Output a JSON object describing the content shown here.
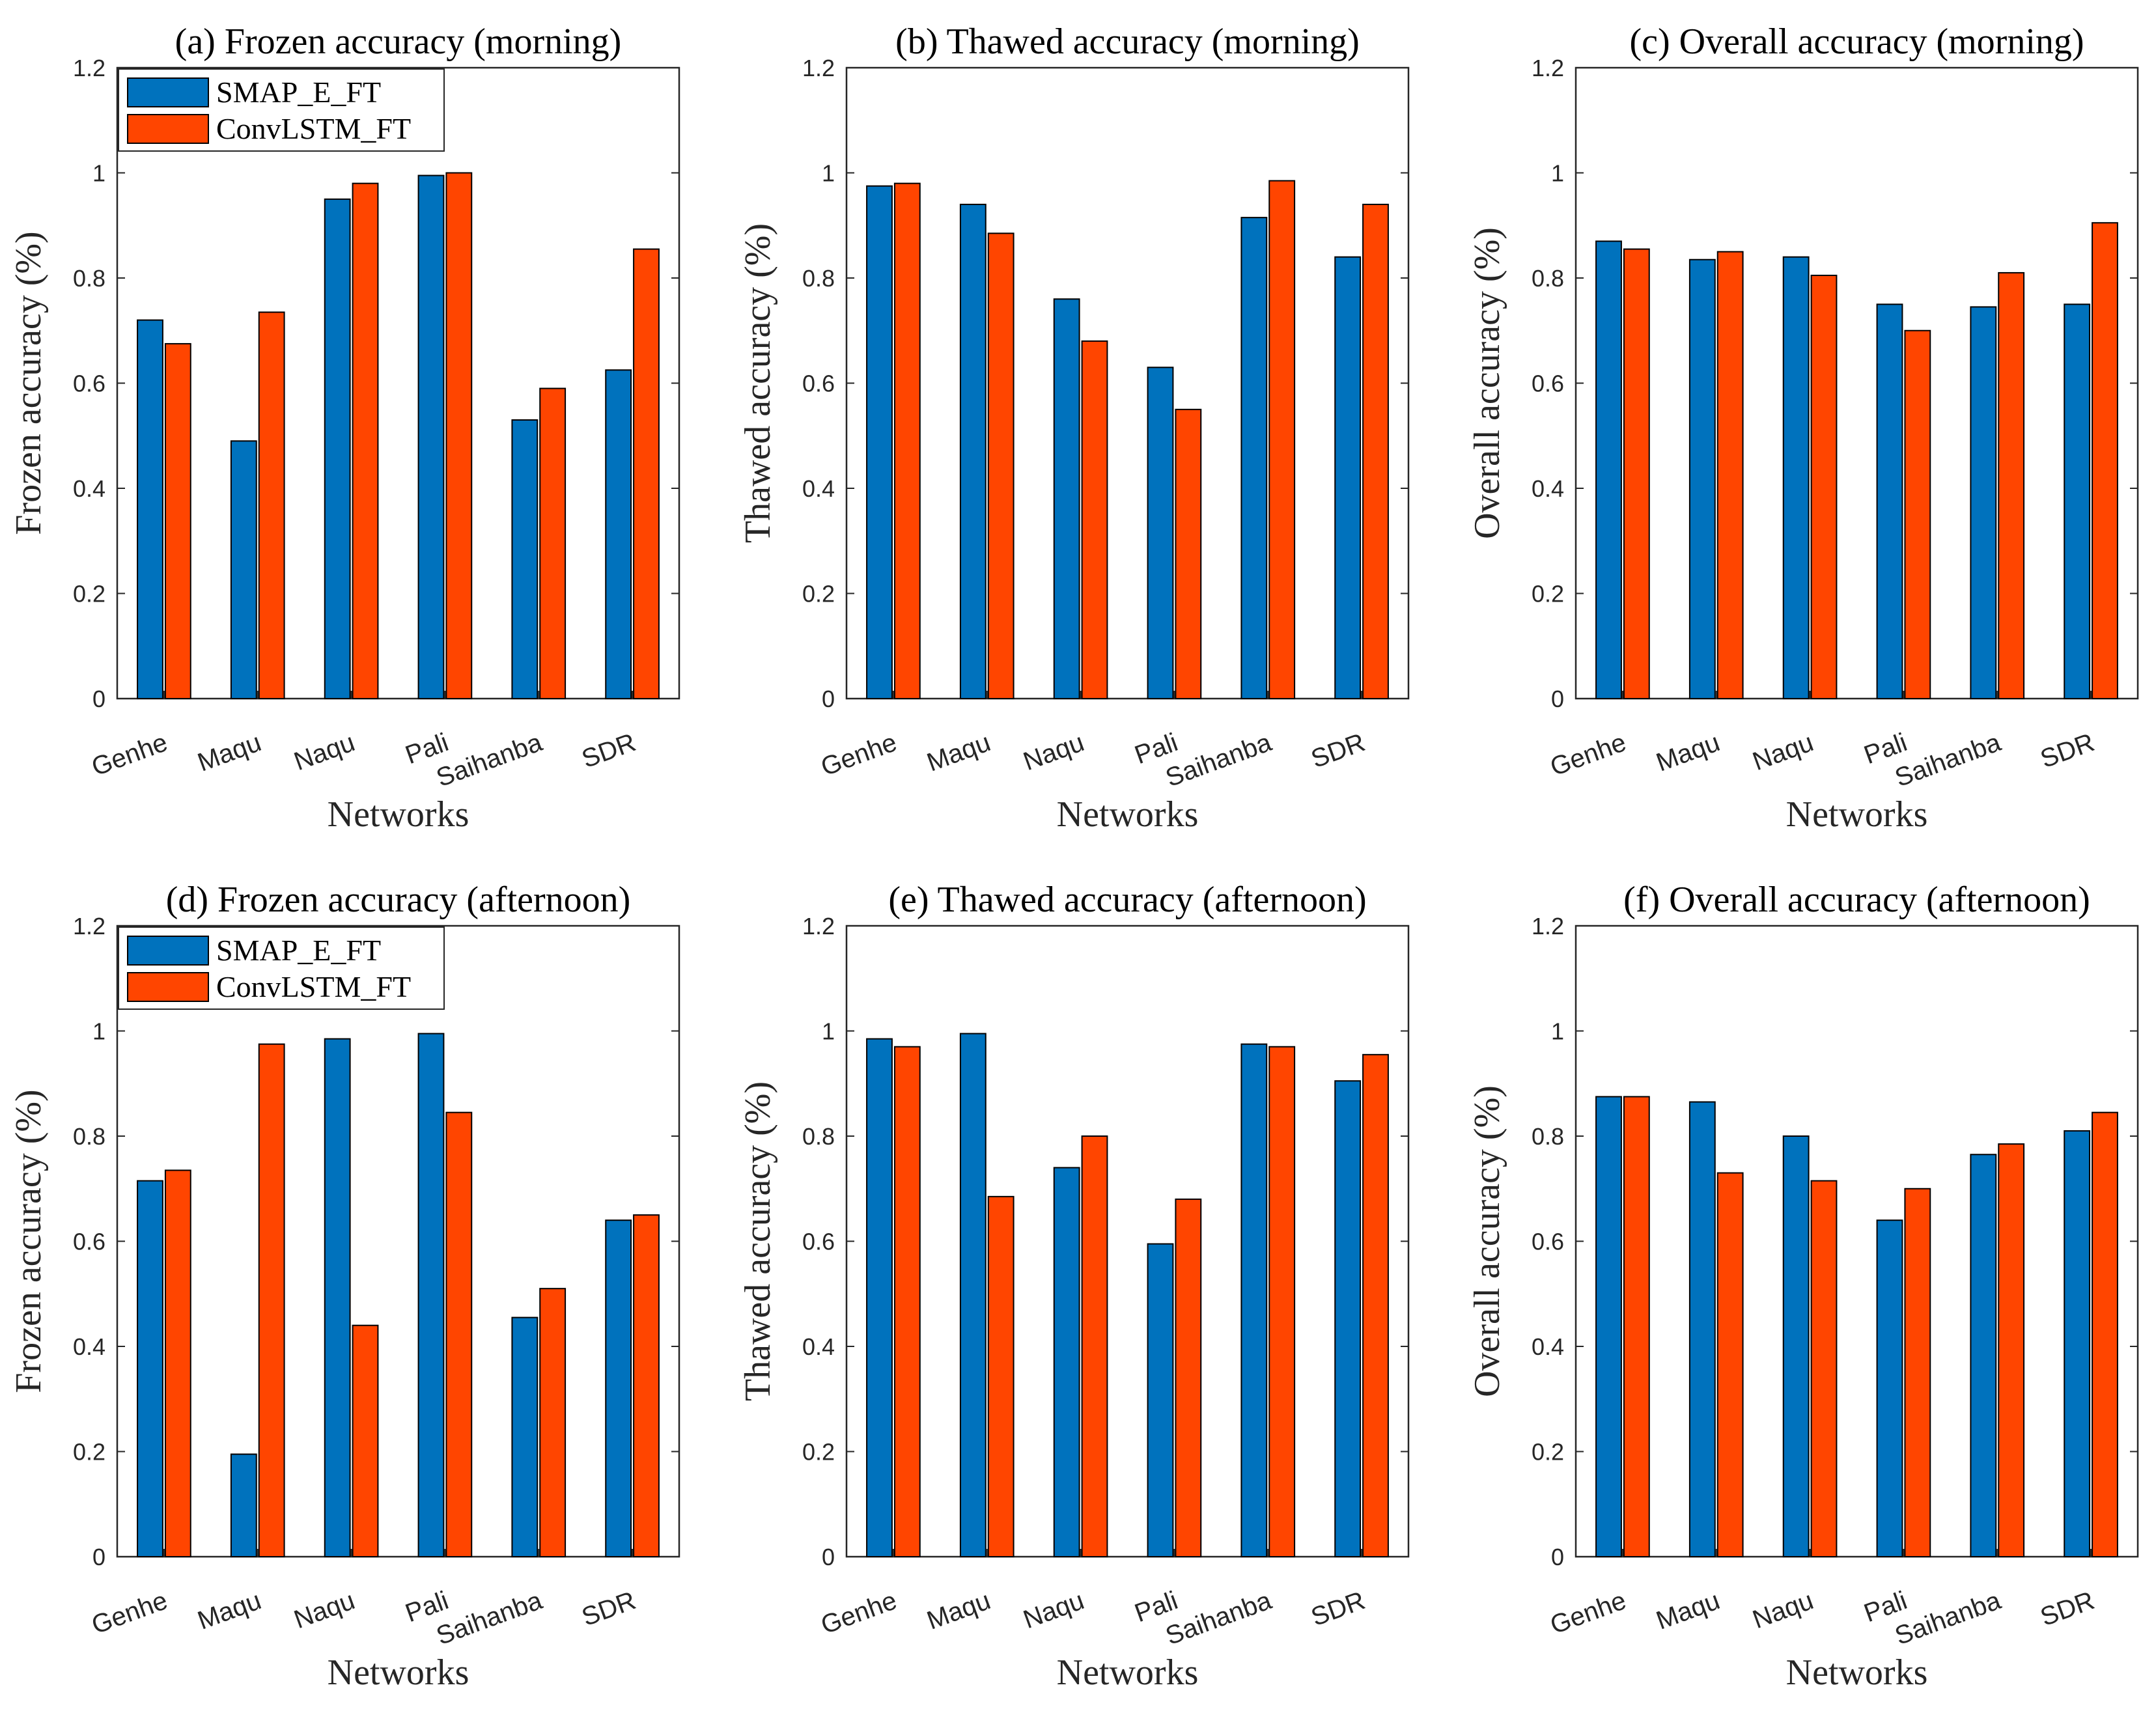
{
  "colors": {
    "SMAP_E_FT": "#0072BD",
    "ConvLSTM_FT": "#FF4500"
  },
  "chart_data": [
    {
      "type": "bar",
      "title": "(a) Frozen accuracy (morning)",
      "xlabel": "Networks",
      "ylabel": "Frozen accuracy (%)",
      "ylim": [
        0,
        1.2
      ],
      "yticks": [
        "0",
        "0.2",
        "0.4",
        "0.6",
        "0.8",
        "1",
        "1.2"
      ],
      "categories": [
        "Genhe",
        "Maqu",
        "Naqu",
        "Pali",
        "Saihanba",
        "SDR"
      ],
      "legend": true,
      "series": [
        {
          "name": "SMAP_E_FT",
          "values": [
            0.72,
            0.49,
            0.95,
            0.995,
            0.53,
            0.625
          ]
        },
        {
          "name": "ConvLSTM_FT",
          "values": [
            0.675,
            0.735,
            0.98,
            1.0,
            0.59,
            0.855
          ]
        }
      ]
    },
    {
      "type": "bar",
      "title": "(b) Thawed accuracy (morning)",
      "xlabel": "Networks",
      "ylabel": "Thawed accuracy (%)",
      "ylim": [
        0,
        1.2
      ],
      "yticks": [
        "0",
        "0.2",
        "0.4",
        "0.6",
        "0.8",
        "1",
        "1.2"
      ],
      "categories": [
        "Genhe",
        "Maqu",
        "Naqu",
        "Pali",
        "Saihanba",
        "SDR"
      ],
      "legend": false,
      "series": [
        {
          "name": "SMAP_E_FT",
          "values": [
            0.975,
            0.94,
            0.76,
            0.63,
            0.915,
            0.84
          ]
        },
        {
          "name": "ConvLSTM_FT",
          "values": [
            0.98,
            0.885,
            0.68,
            0.55,
            0.985,
            0.94
          ]
        }
      ]
    },
    {
      "type": "bar",
      "title": "(c) Overall accuracy (morning)",
      "xlabel": "Networks",
      "ylabel": "Overall accuracy (%)",
      "ylim": [
        0,
        1.2
      ],
      "yticks": [
        "0",
        "0.2",
        "0.4",
        "0.6",
        "0.8",
        "1",
        "1.2"
      ],
      "categories": [
        "Genhe",
        "Maqu",
        "Naqu",
        "Pali",
        "Saihanba",
        "SDR"
      ],
      "legend": false,
      "series": [
        {
          "name": "SMAP_E_FT",
          "values": [
            0.87,
            0.835,
            0.84,
            0.75,
            0.745,
            0.75
          ]
        },
        {
          "name": "ConvLSTM_FT",
          "values": [
            0.855,
            0.85,
            0.805,
            0.7,
            0.81,
            0.905
          ]
        }
      ]
    },
    {
      "type": "bar",
      "title": "(d) Frozen accuracy (afternoon)",
      "xlabel": "Networks",
      "ylabel": "Frozen accuracy (%)",
      "ylim": [
        0,
        1.2
      ],
      "yticks": [
        "0",
        "0.2",
        "0.4",
        "0.6",
        "0.8",
        "1",
        "1.2"
      ],
      "categories": [
        "Genhe",
        "Maqu",
        "Naqu",
        "Pali",
        "Saihanba",
        "SDR"
      ],
      "legend": true,
      "series": [
        {
          "name": "SMAP_E_FT",
          "values": [
            0.715,
            0.195,
            0.985,
            0.995,
            0.455,
            0.64
          ]
        },
        {
          "name": "ConvLSTM_FT",
          "values": [
            0.735,
            0.975,
            0.44,
            0.845,
            0.51,
            0.65
          ]
        }
      ]
    },
    {
      "type": "bar",
      "title": "(e) Thawed accuracy (afternoon)",
      "xlabel": "Networks",
      "ylabel": "Thawed accuracy (%)",
      "ylim": [
        0,
        1.2
      ],
      "yticks": [
        "0",
        "0.2",
        "0.4",
        "0.6",
        "0.8",
        "1",
        "1.2"
      ],
      "categories": [
        "Genhe",
        "Maqu",
        "Naqu",
        "Pali",
        "Saihanba",
        "SDR"
      ],
      "legend": false,
      "series": [
        {
          "name": "SMAP_E_FT",
          "values": [
            0.985,
            0.995,
            0.74,
            0.595,
            0.975,
            0.905
          ]
        },
        {
          "name": "ConvLSTM_FT",
          "values": [
            0.97,
            0.685,
            0.8,
            0.68,
            0.97,
            0.955
          ]
        }
      ]
    },
    {
      "type": "bar",
      "title": "(f) Overall accuracy (afternoon)",
      "xlabel": "Networks",
      "ylabel": "Overall accuracy (%)",
      "ylim": [
        0,
        1.2
      ],
      "yticks": [
        "0",
        "0.2",
        "0.4",
        "0.6",
        "0.8",
        "1",
        "1.2"
      ],
      "categories": [
        "Genhe",
        "Maqu",
        "Naqu",
        "Pali",
        "Saihanba",
        "SDR"
      ],
      "legend": false,
      "series": [
        {
          "name": "SMAP_E_FT",
          "values": [
            0.875,
            0.865,
            0.8,
            0.64,
            0.765,
            0.81
          ]
        },
        {
          "name": "ConvLSTM_FT",
          "values": [
            0.875,
            0.73,
            0.715,
            0.7,
            0.785,
            0.845
          ]
        }
      ]
    }
  ]
}
